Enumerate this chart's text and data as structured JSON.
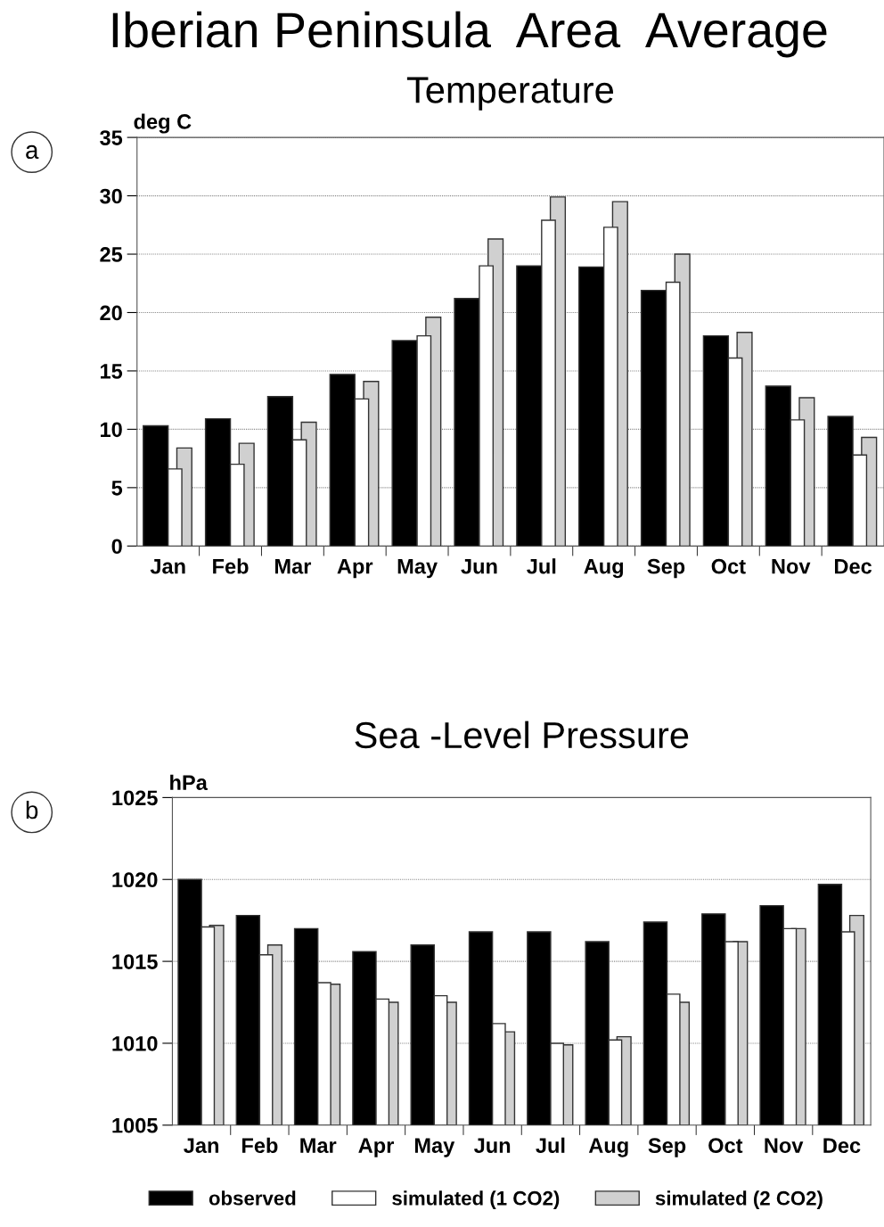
{
  "chart_data": [
    {
      "type": "bar",
      "title": "Iberian Peninsula  Area  Average",
      "subtitle": "Temperature",
      "ylabel": "deg C",
      "annotations": [
        "a"
      ],
      "categories": [
        "Jan",
        "Feb",
        "Mar",
        "Apr",
        "May",
        "Jun",
        "Jul",
        "Aug",
        "Sep",
        "Oct",
        "Nov",
        "Dec"
      ],
      "series": [
        {
          "color": "#000000",
          "values": [
            10.3,
            10.9,
            12.8,
            14.7,
            17.6,
            21.2,
            24.0,
            23.9,
            21.9,
            18.0,
            13.7,
            11.1
          ]
        },
        {
          "color": "#ffffff",
          "values": [
            6.6,
            7.0,
            9.1,
            12.6,
            18.0,
            24.0,
            27.9,
            27.3,
            22.6,
            16.1,
            10.8,
            7.8
          ]
        },
        {
          "color": "#d0d0d0",
          "values": [
            8.4,
            8.8,
            10.6,
            14.1,
            19.6,
            26.3,
            29.9,
            29.5,
            25.0,
            18.3,
            12.7,
            9.3
          ]
        }
      ],
      "ylim": [
        0,
        35
      ],
      "yticks": [
        0,
        5,
        10,
        15,
        20,
        25,
        30,
        35
      ],
      "grid": "y"
    },
    {
      "type": "bar",
      "title": "Sea -Level Pressure",
      "ylabel": "hPa",
      "annotations": [
        "b"
      ],
      "categories": [
        "Jan",
        "Feb",
        "Mar",
        "Apr",
        "May",
        "Jun",
        "Jul",
        "Aug",
        "Sep",
        "Oct",
        "Nov",
        "Dec"
      ],
      "series": [
        {
          "name": "observed",
          "color": "#000000",
          "values": [
            1020.0,
            1017.8,
            1017.0,
            1015.6,
            1016.0,
            1016.8,
            1016.8,
            1016.2,
            1017.4,
            1017.9,
            1018.4,
            1019.7
          ]
        },
        {
          "name": "simulated (1 CO2)",
          "color": "#ffffff",
          "values": [
            1017.1,
            1015.4,
            1013.7,
            1012.7,
            1012.9,
            1011.2,
            1010.0,
            1010.2,
            1013.0,
            1016.2,
            1017.0,
            1016.8
          ]
        },
        {
          "name": "simulated (2 CO2)",
          "color": "#d0d0d0",
          "values": [
            1017.2,
            1016.0,
            1013.6,
            1012.5,
            1012.5,
            1010.7,
            1009.9,
            1010.4,
            1012.5,
            1016.2,
            1017.0,
            1017.8
          ]
        }
      ],
      "ylim": [
        1005,
        1025
      ],
      "yticks": [
        1005,
        1010,
        1015,
        1020,
        1025
      ],
      "grid": "y",
      "legend": "bottom"
    }
  ]
}
